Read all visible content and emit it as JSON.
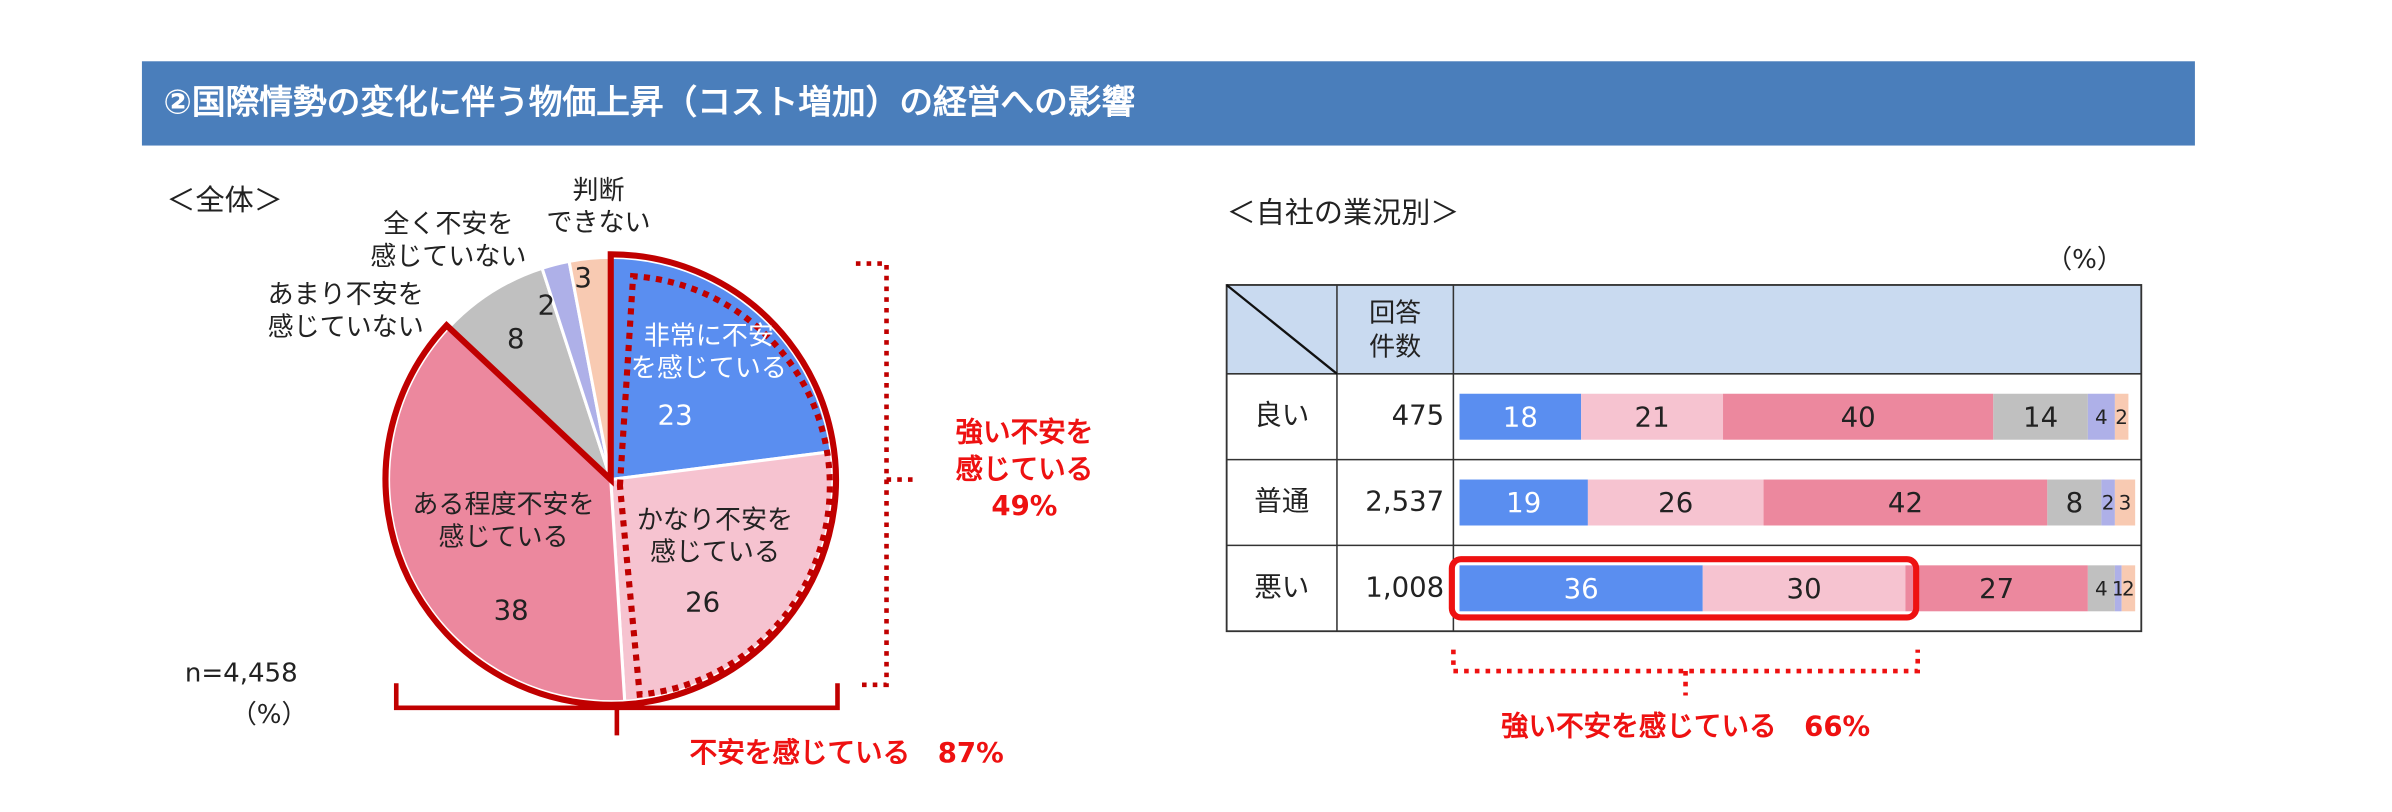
{
  "header": {
    "title": "②国際情勢の変化に伴う物価上昇（コスト増加）の経営への影響"
  },
  "chart_data": [
    {
      "type": "pie",
      "title": "＜全体＞",
      "note": "n=4,458",
      "unit": "（%）",
      "categories": [
        [
          "非常に不安",
          "を感じている"
        ],
        [
          "かなり不安を",
          "感じている"
        ],
        [
          "ある程度不安を",
          "感じている"
        ],
        [
          "あまり不安を",
          "感じていない"
        ],
        [
          "全く不安を",
          "感じていない"
        ],
        [
          "判断",
          "できない"
        ]
      ],
      "values": [
        23,
        26,
        38,
        8,
        2,
        3
      ],
      "colors": [
        "#5a8ef0",
        "#f6c3d0",
        "#ec889e",
        "#c0c0c0",
        "#aeb0e8",
        "#f8cab2"
      ],
      "annotations": [
        [
          "強い不安を",
          "感じている",
          "49%"
        ],
        "不安を感じている　87%"
      ]
    },
    {
      "type": "stacked-bar-table",
      "title": "＜自社の業況別＞",
      "unit": "（%）",
      "header": [
        "回答",
        "件数"
      ],
      "categories": [
        "良い",
        "普通",
        "悪い"
      ],
      "counts": [
        475,
        {
          "value": 2537,
          "label": "2,537"
        },
        {
          "value": 1008,
          "label": "1,008"
        }
      ],
      "xlim": [
        0,
        100
      ],
      "series": [
        {
          "color": "#5a8ef0",
          "values": [
            18,
            19,
            36
          ]
        },
        {
          "color": "#f6c3d0",
          "values": [
            21,
            26,
            30
          ]
        },
        {
          "color": "#ec889e",
          "values": [
            40,
            42,
            27
          ]
        },
        {
          "color": "#c0c0c0",
          "values": [
            14,
            8,
            4
          ]
        },
        {
          "color": "#aeb0e8",
          "values": [
            4,
            2,
            1
          ]
        },
        {
          "color": "#f8cab2",
          "values": [
            2,
            3,
            2
          ]
        }
      ],
      "annotation": "強い不安を感じている　66%"
    }
  ]
}
